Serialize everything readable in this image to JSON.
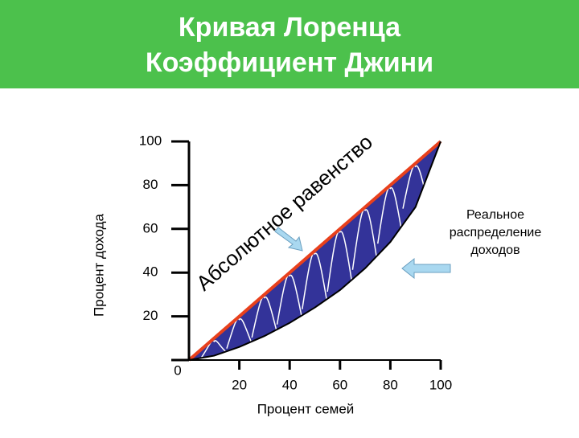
{
  "chart_data": {
    "type": "lorenz",
    "title": "Кривая Лоренца",
    "subtitle": "Коэффициент Джини",
    "x_label": "Процент семей",
    "y_label": "Процент дохода",
    "x": [
      0,
      10,
      20,
      30,
      40,
      50,
      60,
      70,
      80,
      90,
      100
    ],
    "series": [
      {
        "color": "#e8401c",
        "values": [
          0,
          10,
          20,
          30,
          40,
          50,
          60,
          70,
          80,
          90,
          100
        ]
      },
      {
        "color": "#000000",
        "values": [
          0,
          2,
          6,
          11,
          17,
          24,
          32,
          42,
          54,
          70,
          100
        ]
      }
    ],
    "fill_color": "#333399",
    "xlim": [
      0,
      100
    ],
    "ylim": [
      0,
      100
    ],
    "xticks": [
      20,
      40,
      60,
      80,
      100
    ],
    "yticks": [
      0,
      20,
      40,
      60,
      80,
      100
    ],
    "annotations": [
      "Абсолютное равенство",
      "Реальное",
      "распределение",
      "доходов"
    ]
  }
}
